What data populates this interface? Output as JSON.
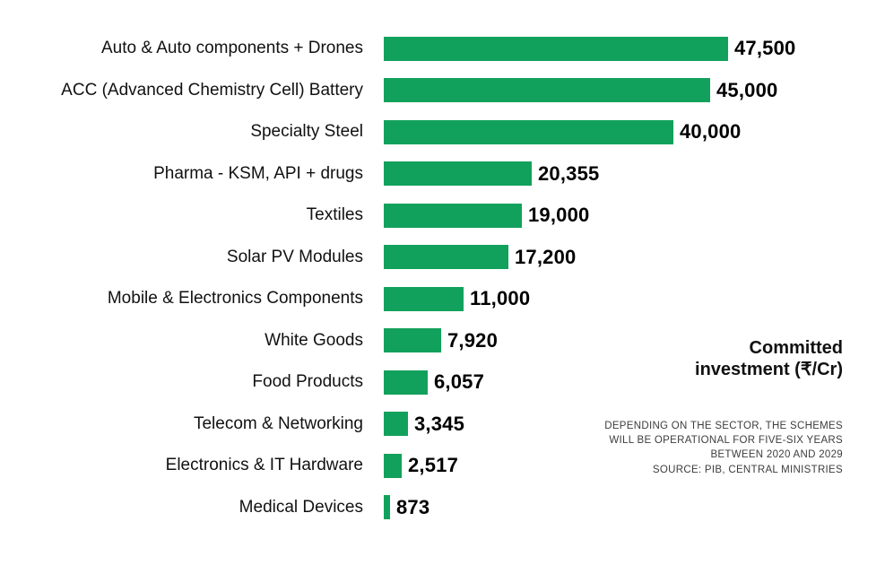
{
  "chart_data": {
    "type": "bar",
    "orientation": "horizontal",
    "title": "",
    "xlabel": "",
    "ylabel": "",
    "xlim": [
      0,
      47500
    ],
    "grid": false,
    "bar_color": "#12a15c",
    "categories": [
      "Auto & Auto components + Drones",
      "ACC (Advanced Chemistry Cell) Battery",
      "Specialty Steel",
      "Pharma - KSM, API + drugs",
      "Textiles",
      "Solar PV Modules",
      "Mobile & Electronics Components",
      "White Goods",
      "Food Products",
      "Telecom & Networking",
      "Electronics & IT Hardware",
      "Medical Devices"
    ],
    "values": [
      47500,
      45000,
      40000,
      20355,
      19000,
      17200,
      11000,
      7920,
      6057,
      3345,
      2517,
      873
    ],
    "value_labels": [
      "47,500",
      "45,000",
      "40,000",
      "20,355",
      "19,000",
      "17,200",
      "11,000",
      "7,920",
      "6,057",
      "3,345",
      "2,517",
      "873"
    ],
    "legend_title": "Committed investment (₹/Cr)"
  },
  "annotation": {
    "title_line1": "Committed",
    "title_line2": "investment (₹/Cr)",
    "note_lines": [
      "DEPENDING ON THE SECTOR, THE SCHEMES",
      "WILL BE OPERATIONAL FOR FIVE-SIX YEARS",
      "BETWEEN 2020 AND 2029",
      "SOURCE: PIB, CENTRAL MINISTRIES"
    ]
  }
}
